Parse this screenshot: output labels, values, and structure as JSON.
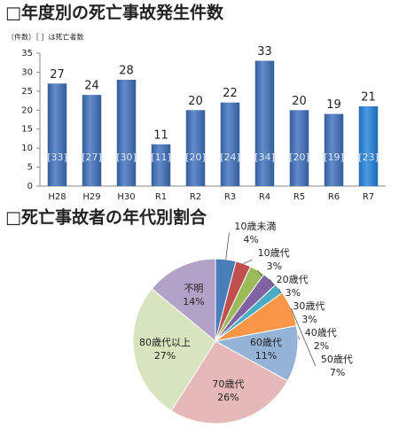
{
  "chart_data": [
    {
      "type": "bar",
      "title": "□年度別の死亡事故発生件数",
      "subtitle": "（件数）［ ］は死亡者数",
      "categories": [
        "H28",
        "H29",
        "H30",
        "R1",
        "R2",
        "R3",
        "R4",
        "R5",
        "R6",
        "R7"
      ],
      "values": [
        27,
        24,
        28,
        11,
        20,
        22,
        33,
        20,
        19,
        21
      ],
      "colors": [
        "#3f72c0",
        "#3f72c0",
        "#3f72c0",
        "#3f72c0",
        "#3f72c0",
        "#3f72c0",
        "#3f72c0",
        "#3f72c0",
        "#3f72c0",
        "#2384e0"
      ],
      "deaths": {
        "values": [
          33,
          27,
          30,
          11,
          20,
          24,
          34,
          20,
          19,
          23
        ],
        "value_labels": [
          "[33]",
          "[27]",
          "[30]",
          "[11]",
          "[20]",
          "[24]",
          "[34]",
          "[20]",
          "[19]",
          "[23]"
        ]
      },
      "ylim": [
        0,
        35
      ],
      "yticks": [
        0,
        5,
        10,
        15,
        20,
        25,
        30,
        35
      ],
      "grid": false
    },
    {
      "type": "pie",
      "title": "□死亡事故者の年代別割合",
      "categories": [
        "10歳未満",
        "10歳代",
        "20歳代",
        "30歳代",
        "40歳代",
        "50歳代",
        "60歳代",
        "70歳代",
        "80歳代以上",
        "不明"
      ],
      "values": [
        4,
        3,
        3,
        3,
        2,
        7,
        11,
        26,
        27,
        14
      ],
      "value_labels": [
        "4%",
        "3%",
        "3%",
        "3%",
        "2%",
        "7%",
        "11%",
        "26%",
        "27%",
        "14%"
      ],
      "colors": [
        "#4a7ebb",
        "#c0504d",
        "#9bbb59",
        "#8064a2",
        "#4bacc6",
        "#f79646",
        "#95b3d7",
        "#e6b9b8",
        "#d7e4bd",
        "#b3a2c7"
      ]
    }
  ]
}
